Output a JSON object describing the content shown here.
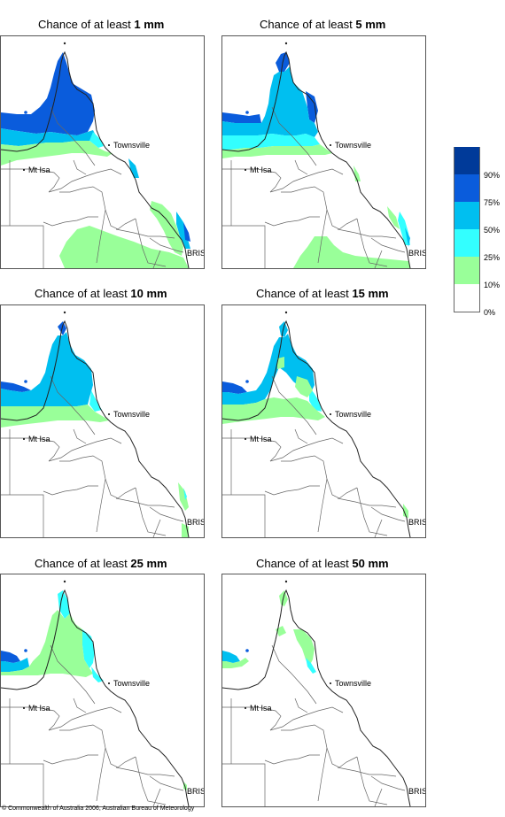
{
  "panels": [
    {
      "prefix": "Chance of at least ",
      "amount": "1 mm"
    },
    {
      "prefix": "Chance of at least ",
      "amount": "5 mm"
    },
    {
      "prefix": "Chance of at least ",
      "amount": "10 mm"
    },
    {
      "prefix": "Chance of at least ",
      "amount": "15 mm"
    },
    {
      "prefix": "Chance of at least ",
      "amount": "25 mm"
    },
    {
      "prefix": "Chance of at least ",
      "amount": "50 mm"
    }
  ],
  "places": {
    "townsville": "Townsville",
    "mt_isa": "Mt Isa",
    "bris": "BRIS"
  },
  "legend": {
    "labels": [
      "90%",
      "75%",
      "50%",
      "25%",
      "10%",
      "0%"
    ],
    "colors": [
      "#003a99",
      "#0a5cdc",
      "#00bff0",
      "#33ffff",
      "#99ff99",
      "#ffffff"
    ]
  },
  "copyright": "© Commonwealth of Australia 2006, Australian Bureau of Meteorology"
}
